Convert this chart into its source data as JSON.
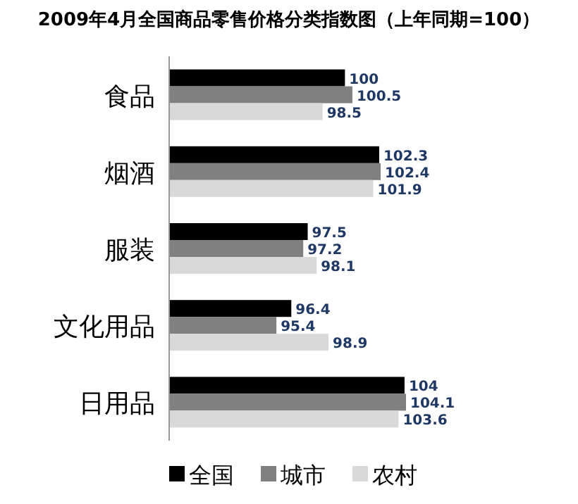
{
  "chart_data": {
    "type": "bar",
    "orientation": "horizontal",
    "title": "2009年4月全国商品零售价格分类指数图（上年同期=100）",
    "categories": [
      "食品",
      "烟酒",
      "服装",
      "文化用品",
      "日用品"
    ],
    "series": [
      {
        "name": "全国",
        "color": "#000000",
        "values": [
          100,
          102.3,
          97.5,
          96.4,
          104
        ]
      },
      {
        "name": "城市",
        "color": "#808080",
        "values": [
          100.5,
          102.4,
          97.2,
          95.4,
          104.1
        ]
      },
      {
        "name": "农村",
        "color": "#d9d9d9",
        "values": [
          98.5,
          101.9,
          98.1,
          98.9,
          103.6
        ]
      }
    ],
    "xlim": [
      88.2,
      104.1
    ],
    "data_labels": true,
    "legend": "bottom"
  }
}
